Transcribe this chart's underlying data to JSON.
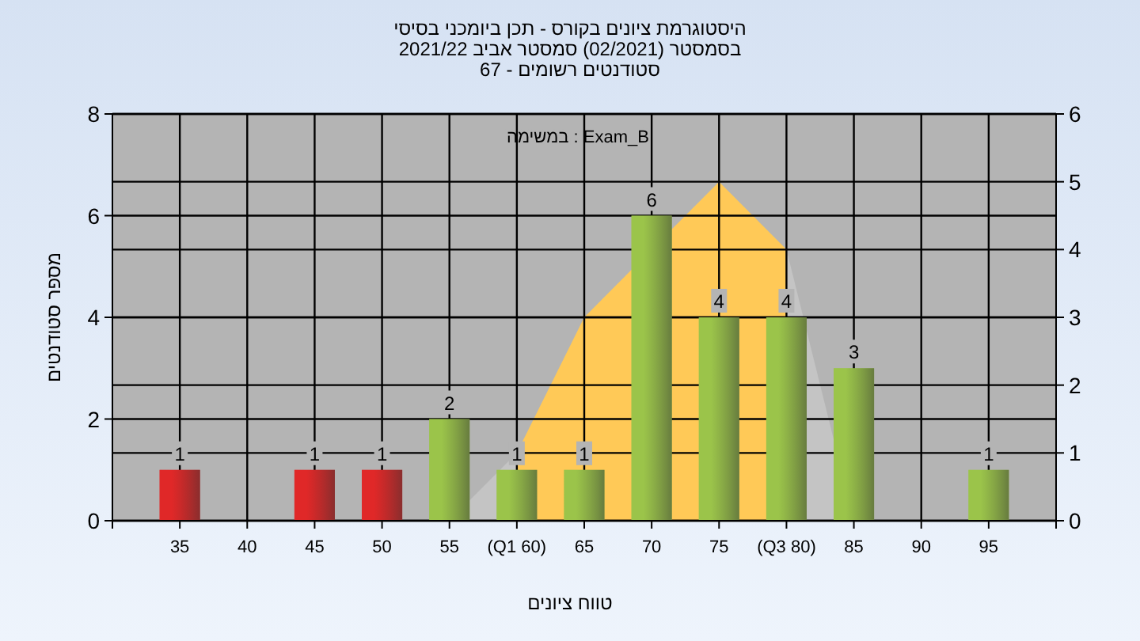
{
  "chart_data": {
    "type": "bar",
    "title": "היסטוגרמת ציונים בקורס - תכן ביומכני בסיסי",
    "subtitle": "בסמסטר (02/2021) סמסטר אביב 2021/22",
    "annotations": [
      "סטודנטים רשומים - 67",
      "במשימה : Exam_B"
    ],
    "xlabel": "טווח ציונים",
    "ylabel": "מספר סטודנטים",
    "xlim": [
      30,
      100
    ],
    "xticks": [
      35,
      40,
      45,
      50,
      55,
      {
        "value": 60,
        "label": "(Q1 60)"
      },
      65,
      70,
      75,
      {
        "value": 80,
        "label": "(Q3 80)"
      },
      85,
      90,
      95
    ],
    "ylim": [
      0,
      8
    ],
    "yticks": [
      0,
      2,
      4,
      6,
      8
    ],
    "y2lim": [
      0,
      6
    ],
    "y2ticks": [
      0,
      1,
      2,
      3,
      4,
      5,
      6
    ],
    "grid": true,
    "series": [
      {
        "type": "area",
        "axis": "y2",
        "color": "#c4c4c4",
        "x": [
          55,
          60
        ],
        "values": [
          0,
          1
        ]
      },
      {
        "type": "area",
        "axis": "y2",
        "color": "#ffc957",
        "x": [
          60,
          65,
          75,
          80
        ],
        "values": [
          1,
          3,
          5,
          4
        ]
      },
      {
        "type": "area",
        "axis": "y2",
        "color": "#c4c4c4",
        "x": [
          80,
          85
        ],
        "values": [
          4,
          0
        ]
      },
      {
        "x": [
          35,
          45,
          50,
          55,
          60,
          65,
          70,
          75,
          80,
          85,
          95
        ],
        "values": [
          1,
          1,
          1,
          2,
          1,
          1,
          6,
          4,
          4,
          3,
          1
        ],
        "value_labels": [
          "1",
          "1",
          "1",
          "2",
          "1",
          "1",
          "6",
          "4",
          "4",
          "3",
          "1"
        ],
        "colors": [
          "#e02828",
          "#e02828",
          "#e02828",
          "#9bc44a",
          "#9bc44a",
          "#9bc44a",
          "#9bc44a",
          "#9bc44a",
          "#9bc44a",
          "#9bc44a",
          "#9bc44a"
        ]
      }
    ]
  }
}
